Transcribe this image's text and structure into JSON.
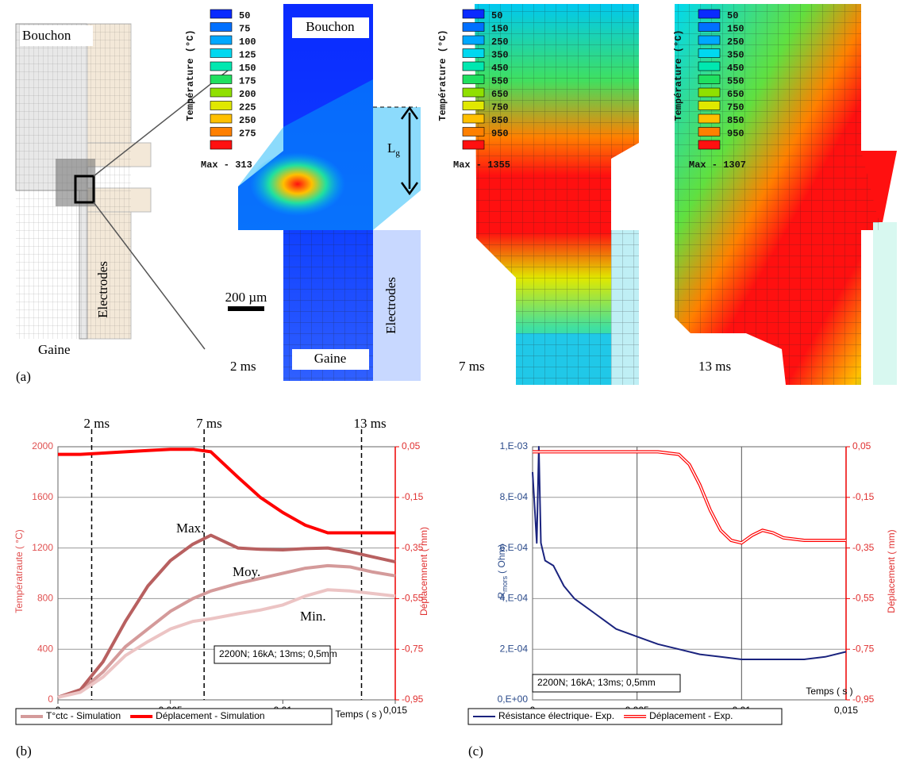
{
  "figure_a": {
    "panel": "(a)",
    "schematic": {
      "top": "Bouchon",
      "side": "Electrodes",
      "bottom": "Gaine"
    },
    "zoom_labels": {
      "top": "Bouchon",
      "bottom": "Gaine",
      "side": "Electrodes",
      "gap": "L",
      "gap_sub": "g",
      "scale": "200 µm"
    },
    "legend_colors": [
      "#0a2aff",
      "#0070ff",
      "#00a8ff",
      "#00d8f0",
      "#00e8b0",
      "#20e060",
      "#90e000",
      "#e0e800",
      "#ffc000",
      "#ff8000",
      "#ff1010"
    ],
    "snapshots": [
      {
        "time": "2 ms",
        "legend_title": "Température (°C)",
        "legend_values": [
          50,
          75,
          100,
          125,
          150,
          175,
          200,
          225,
          250,
          275
        ],
        "max": "Max - 313"
      },
      {
        "time": "7 ms",
        "legend_title": "Température (°C)",
        "legend_values": [
          50,
          150,
          250,
          350,
          450,
          550,
          650,
          750,
          850,
          950
        ],
        "max": "Max - 1355"
      },
      {
        "time": "13 ms",
        "legend_title": "Température (°C)",
        "legend_values": [
          50,
          150,
          250,
          350,
          450,
          550,
          650,
          750,
          850,
          950
        ],
        "max": "Max - 1307"
      }
    ]
  },
  "chart_data": [
    {
      "type": "line",
      "panel": "(b)",
      "xlabel": "Temps ( s )",
      "ylabel": "Températraute ( °C)",
      "y2label": "Déplacemnent ( mm)",
      "note": "2200N; 16kA; 13ms; 0,5mm",
      "grid": "y",
      "ycolor": "#e05050",
      "xlim": [
        0,
        0.015
      ],
      "xticks": [
        0,
        {
          "value": 0.005,
          "label": "0,005"
        },
        {
          "value": 0.01,
          "label": "0,01"
        },
        {
          "value": 0.015,
          "label": "0,015"
        }
      ],
      "ylim": [
        0,
        2000
      ],
      "yticks": [
        0,
        400,
        800,
        1200,
        1600,
        2000
      ],
      "y2lim": [
        -0.95,
        0.05
      ],
      "y2ticks": [
        {
          "value": -0.95,
          "label": "-0,95"
        },
        {
          "value": -0.75,
          "label": "-0,75"
        },
        {
          "value": -0.55,
          "label": "-0,55"
        },
        {
          "value": -0.35,
          "label": "-0,35"
        },
        {
          "value": -0.15,
          "label": "-0,15"
        },
        {
          "value": 0.05,
          "label": "0,05"
        }
      ],
      "markers": [
        {
          "x": 0.0015,
          "label": "2 ms"
        },
        {
          "x": 0.0065,
          "label": "7 ms"
        },
        {
          "x": 0.0135,
          "label": "13 ms"
        }
      ],
      "x": [
        0,
        0.001,
        0.002,
        0.003,
        0.004,
        0.005,
        0.006,
        0.0068,
        0.008,
        0.009,
        0.01,
        0.011,
        0.012,
        0.013,
        0.014,
        0.015
      ],
      "series": [
        {
          "name": "T°ctc - Simulation",
          "label": "Moy.",
          "color": "#d49a9a",
          "values": [
            20,
            70,
            220,
            420,
            560,
            700,
            800,
            860,
            920,
            960,
            1000,
            1040,
            1060,
            1050,
            1010,
            980
          ]
        },
        {
          "name": "Déplacement - Simulation",
          "color": "#ff0000",
          "axis": "y2",
          "values": [
            0.02,
            0.02,
            0.025,
            0.03,
            0.035,
            0.04,
            0.04,
            0.03,
            -0.07,
            -0.15,
            -0.21,
            -0.26,
            -0.29,
            -0.29,
            -0.29,
            -0.29
          ]
        },
        {
          "label": "Max.",
          "color": "#b86060",
          "values": [
            20,
            80,
            300,
            620,
            900,
            1100,
            1230,
            1300,
            1200,
            1190,
            1185,
            1195,
            1200,
            1170,
            1130,
            1090
          ]
        },
        {
          "label": "Min.",
          "color": "#ecc4c4",
          "values": [
            20,
            60,
            180,
            350,
            460,
            560,
            620,
            640,
            680,
            710,
            750,
            820,
            870,
            860,
            840,
            820
          ]
        }
      ]
    },
    {
      "type": "line",
      "panel": "(c)",
      "xlabel": "Temps ( s )",
      "ylabel": "R",
      "ylabel_sub": "mors",
      "ylabel_unit": "( Ohm)",
      "y2label": "Déplacement ( mm)",
      "note": "2200N; 16kA; 13ms; 0,5mm",
      "grid": "both",
      "ycolor": "#2a4a8a",
      "xlim": [
        0,
        0.015
      ],
      "xticks": [
        0,
        {
          "value": 0.005,
          "label": "0,005"
        },
        {
          "value": 0.01,
          "label": "0,01"
        },
        {
          "value": 0.015,
          "label": "0,015"
        }
      ],
      "ylim": [
        0,
        0.001
      ],
      "yticks": [
        {
          "value": 0,
          "label": "0,E+00"
        },
        {
          "value": 0.0002,
          "label": "2,E-04"
        },
        {
          "value": 0.0004,
          "label": "4,E-04"
        },
        {
          "value": 0.0006,
          "label": "6,E-04"
        },
        {
          "value": 0.0008,
          "label": "8,E-04"
        },
        {
          "value": 0.001,
          "label": "1,E-03"
        }
      ],
      "y2lim": [
        -0.95,
        0.05
      ],
      "y2ticks": [
        {
          "value": -0.95,
          "label": "-0,95"
        },
        {
          "value": -0.75,
          "label": "-0,75"
        },
        {
          "value": -0.55,
          "label": "-0,55"
        },
        {
          "value": -0.35,
          "label": "-0,35"
        },
        {
          "value": -0.15,
          "label": "-0,15"
        },
        {
          "value": 0.05,
          "label": "0,05"
        }
      ],
      "series": [
        {
          "name": "Résistance électrique- Exp.",
          "color": "#1a237e",
          "x": [
            0,
            0.0002,
            0.0003,
            0.0004,
            0.0006,
            0.001,
            0.0015,
            0.002,
            0.003,
            0.004,
            0.005,
            0.006,
            0.007,
            0.008,
            0.009,
            0.01,
            0.011,
            0.012,
            0.013,
            0.014,
            0.015
          ],
          "values": [
            0.0009,
            0.00062,
            0.001,
            0.00062,
            0.00055,
            0.00053,
            0.00045,
            0.0004,
            0.00034,
            0.00028,
            0.00025,
            0.00022,
            0.0002,
            0.00018,
            0.00017,
            0.00016,
            0.00016,
            0.00016,
            0.00016,
            0.00017,
            0.00019
          ]
        },
        {
          "name": "Déplacement - Exp.",
          "color": "#ff0000",
          "axis": "y2",
          "line_style": "double",
          "x": [
            0,
            0.002,
            0.004,
            0.006,
            0.007,
            0.0075,
            0.008,
            0.0085,
            0.009,
            0.0095,
            0.01,
            0.0105,
            0.011,
            0.0115,
            0.012,
            0.013,
            0.014,
            0.015
          ],
          "values": [
            0.03,
            0.03,
            0.03,
            0.03,
            0.02,
            -0.02,
            -0.1,
            -0.2,
            -0.28,
            -0.32,
            -0.33,
            -0.3,
            -0.28,
            -0.29,
            -0.31,
            -0.32,
            -0.32,
            -0.32
          ]
        }
      ]
    }
  ]
}
